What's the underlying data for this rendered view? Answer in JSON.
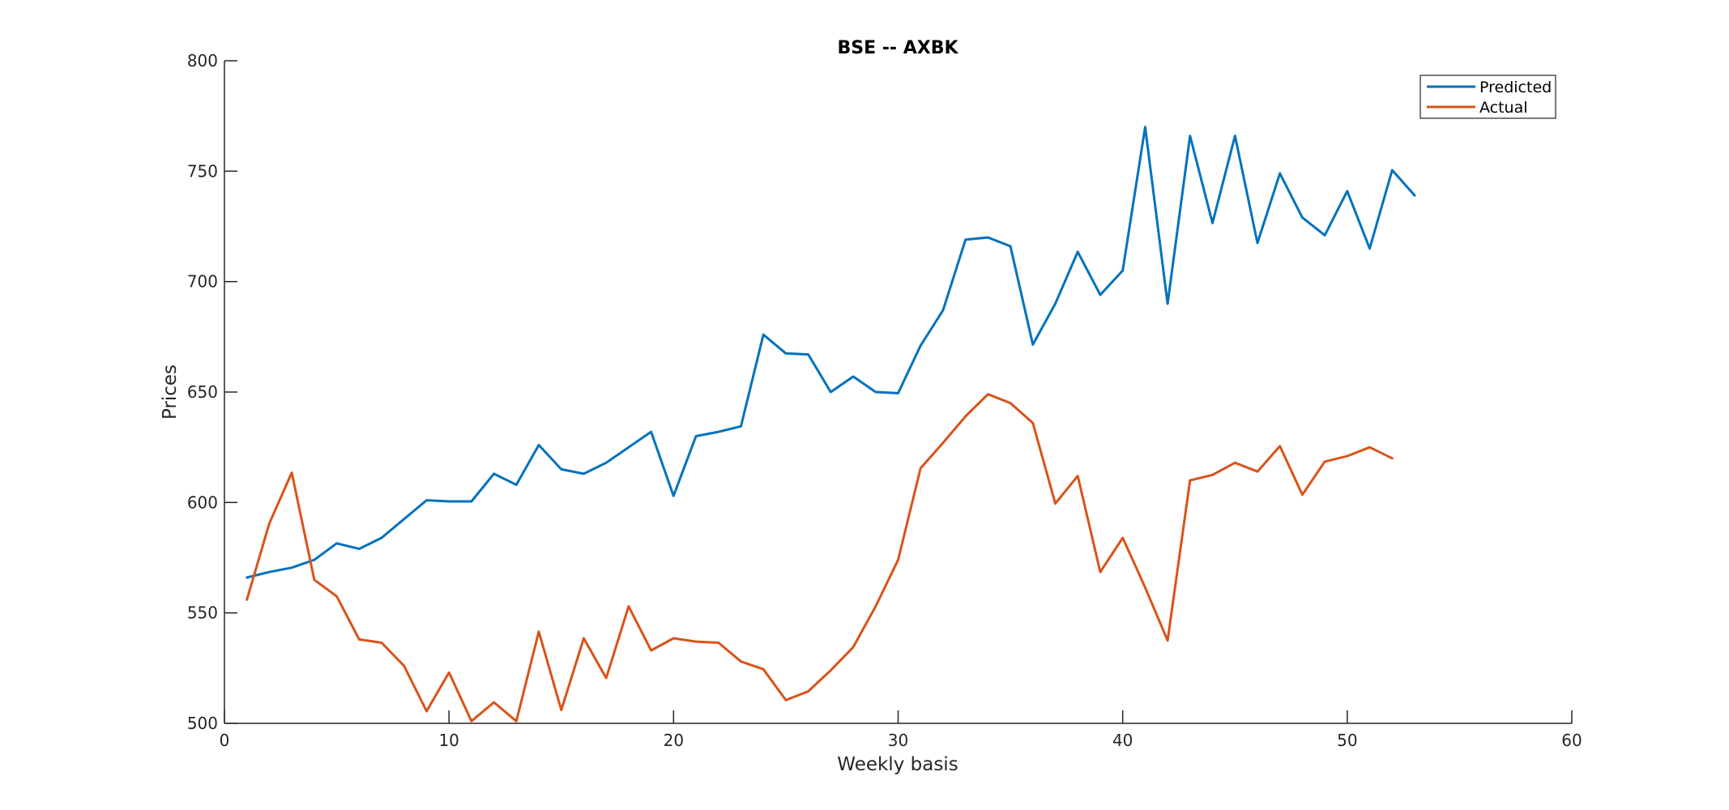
{
  "chart_data": {
    "type": "line",
    "title": "BSE -- AXBK",
    "xlabel": "Weekly basis",
    "ylabel": "Prices",
    "xlim": [
      0,
      60
    ],
    "ylim": [
      500,
      800
    ],
    "xticks": [
      0,
      10,
      20,
      30,
      40,
      50,
      60
    ],
    "yticks": [
      500,
      550,
      600,
      650,
      700,
      750,
      800
    ],
    "grid": false,
    "legend_position": "top-right",
    "series": [
      {
        "name": "Predicted",
        "color": "#0072BD",
        "x": [
          1,
          2,
          3,
          4,
          5,
          6,
          7,
          8,
          9,
          10,
          11,
          12,
          13,
          14,
          15,
          16,
          17,
          18,
          19,
          20,
          21,
          22,
          23,
          24,
          25,
          26,
          27,
          28,
          29,
          30,
          31,
          32,
          33,
          34,
          35,
          36,
          37,
          38,
          39,
          40,
          41,
          42,
          43,
          44,
          45,
          46,
          47,
          48,
          49,
          50,
          51,
          52,
          53
        ],
        "values": [
          566,
          568.5,
          570.5,
          574,
          581.5,
          579,
          584,
          592.5,
          601,
          600.5,
          600.5,
          613,
          608,
          626,
          615,
          613,
          618,
          625,
          632,
          603,
          630,
          632,
          634.5,
          676,
          667.5,
          667,
          650,
          657,
          650,
          649.5,
          671,
          687,
          719,
          720,
          716,
          671.5,
          690,
          713.5,
          694,
          705,
          770,
          690,
          766,
          726.5,
          766,
          717.5,
          749,
          729,
          721,
          741,
          715,
          750.5,
          739
        ]
      },
      {
        "name": "Actual",
        "color": "#D95319",
        "x": [
          1,
          2,
          3,
          4,
          5,
          6,
          7,
          8,
          9,
          10,
          11,
          12,
          13,
          14,
          15,
          16,
          17,
          18,
          19,
          20,
          21,
          22,
          23,
          24,
          25,
          26,
          27,
          28,
          29,
          30,
          31,
          32,
          33,
          34,
          35,
          36,
          37,
          38,
          39,
          40,
          41,
          42,
          43,
          44,
          45,
          46,
          47,
          48,
          49,
          50,
          51,
          52
        ],
        "values": [
          556,
          590.5,
          613.5,
          565,
          557.5,
          538,
          536.5,
          526,
          505.5,
          523,
          501,
          509.5,
          501,
          541.5,
          506,
          538.5,
          520.5,
          553,
          533,
          538.5,
          537,
          536.5,
          528,
          524.5,
          510.5,
          514.5,
          524,
          534.5,
          553,
          574,
          615.5,
          627,
          639,
          649,
          645,
          636,
          599.5,
          612,
          568.5,
          584,
          561.5,
          537.5,
          610,
          612.5,
          618,
          614,
          625.5,
          603.5,
          618.5,
          621,
          625,
          620
        ]
      }
    ]
  }
}
